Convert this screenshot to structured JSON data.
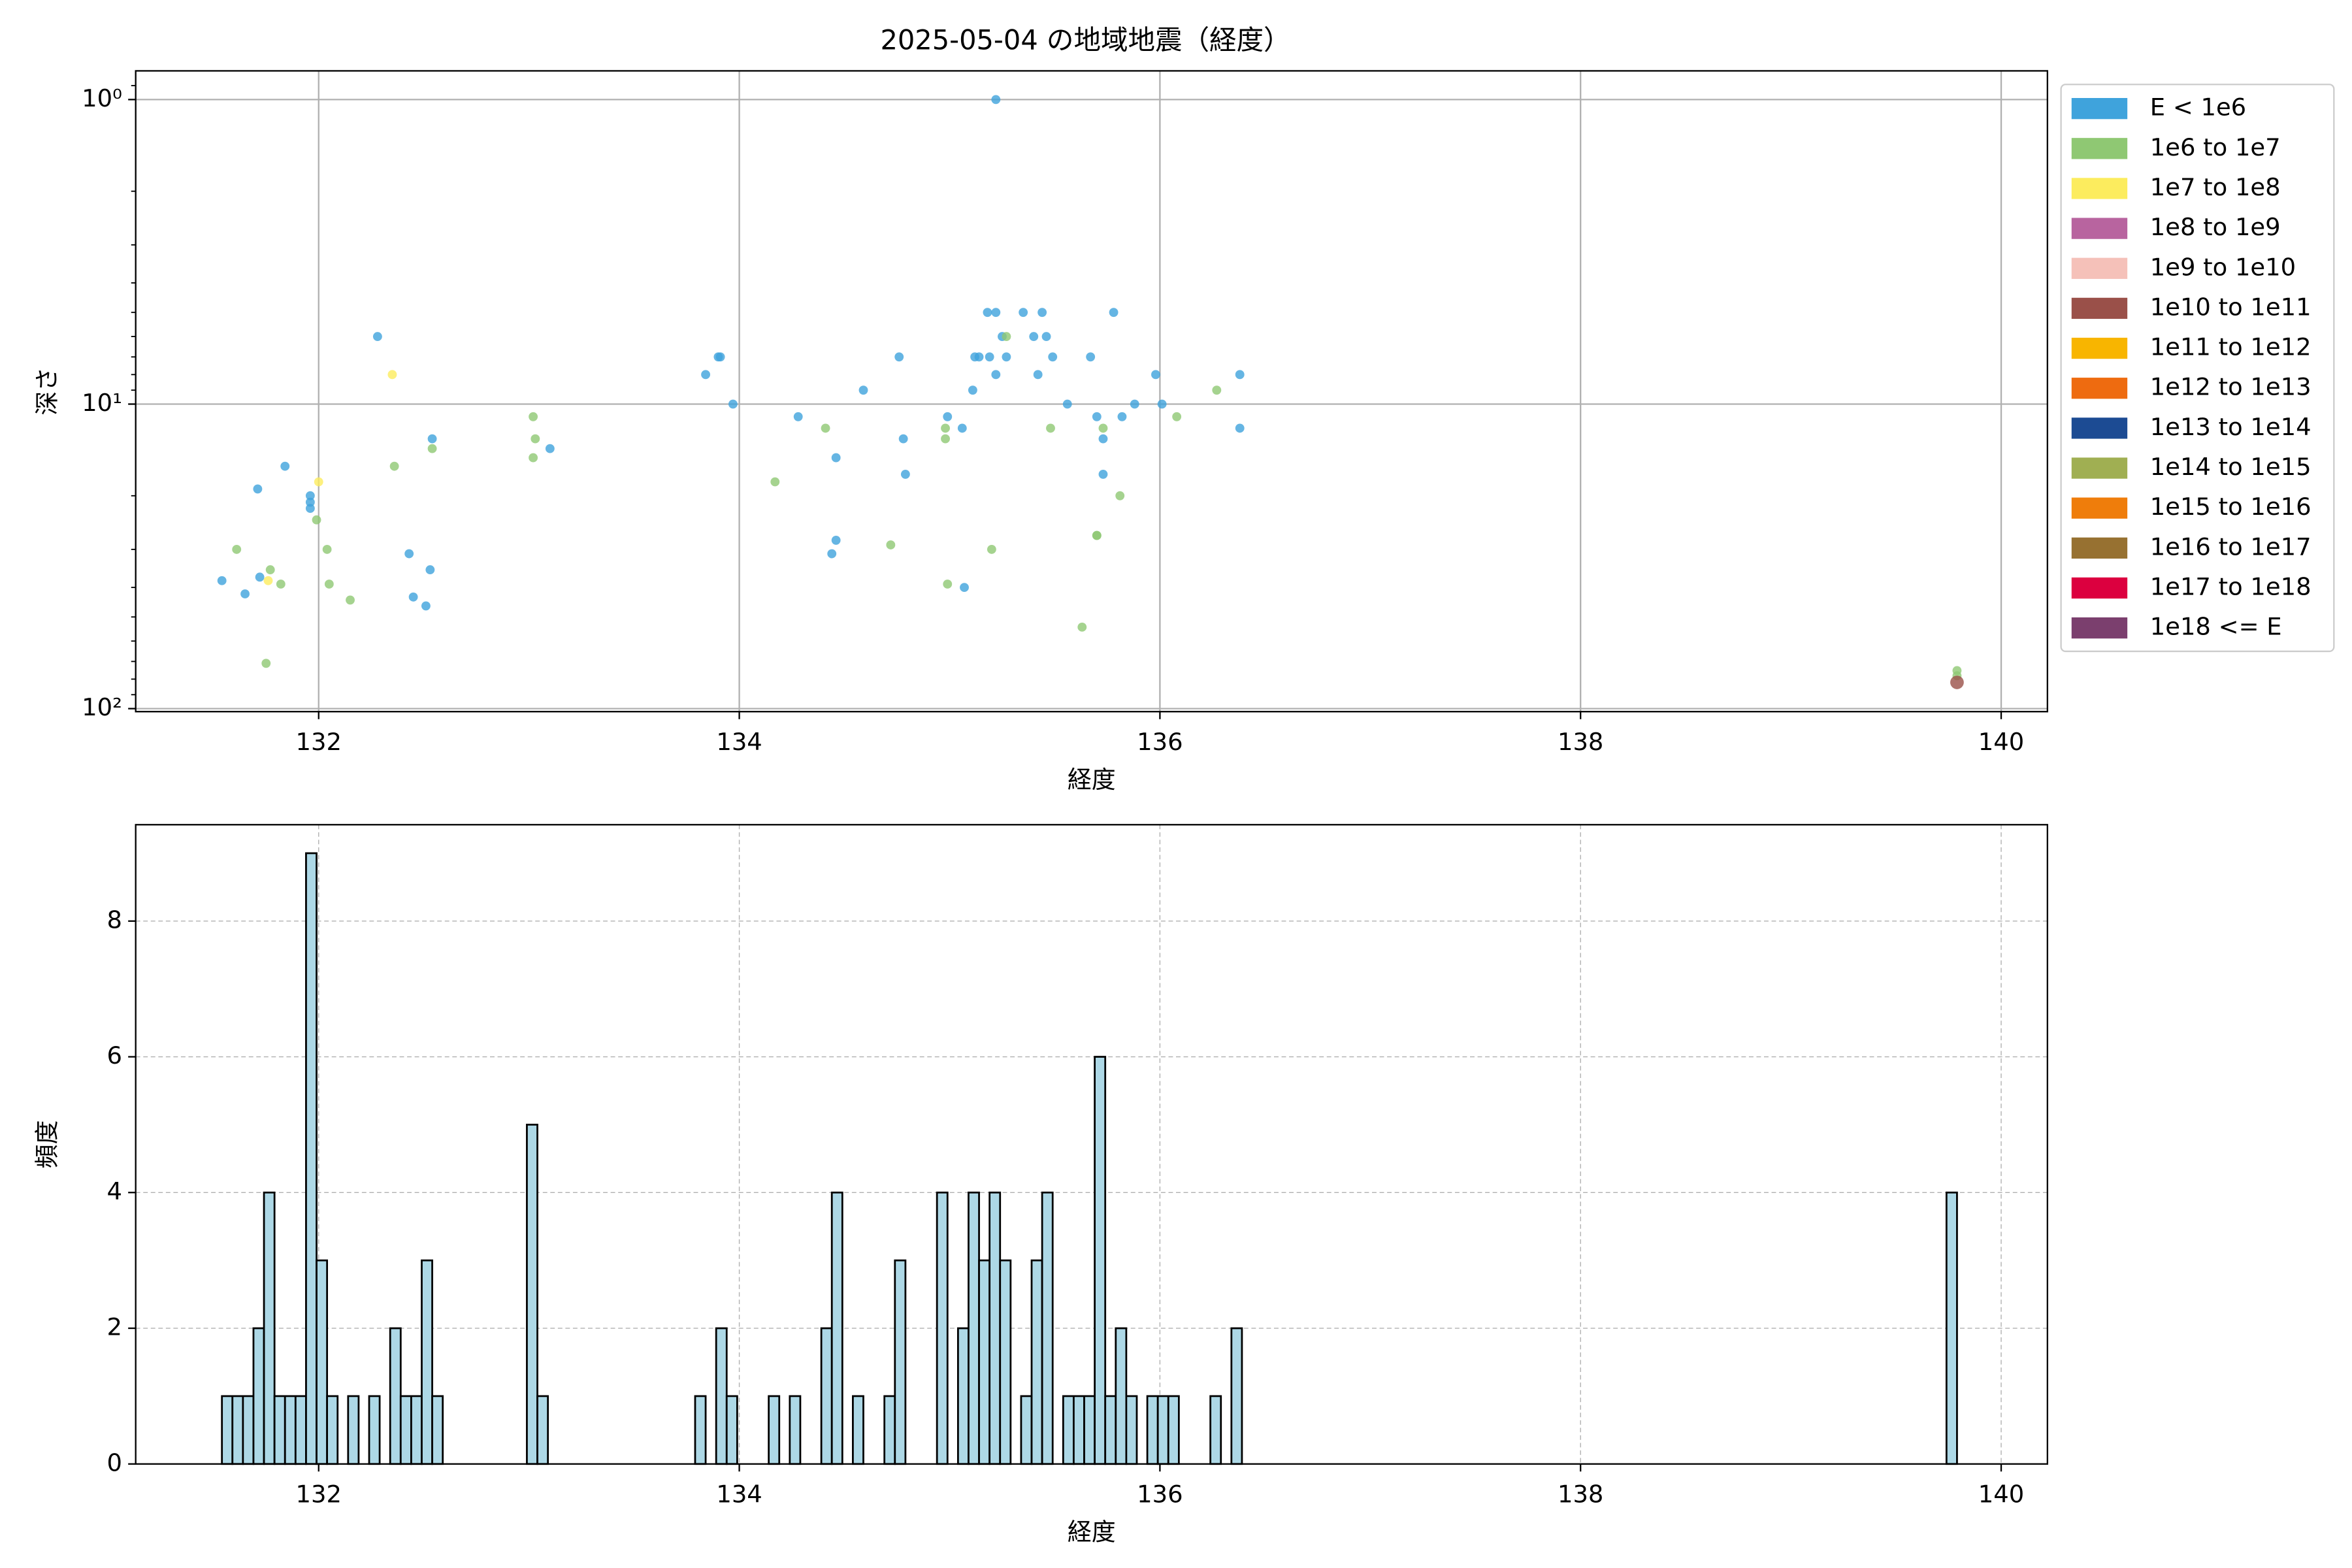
{
  "chart_data": [
    {
      "type": "scatter",
      "title": "2025-05-04 の地域地震（経度）",
      "xlabel": "経度",
      "ylabel": "深さ",
      "xlim": [
        131.13,
        140.22
      ],
      "xticks": [
        132,
        134,
        136,
        138,
        140
      ],
      "ylim": [
        102.3,
        0.805
      ],
      "yscale": "log",
      "yticks": [
        {
          "value": 1,
          "label": "10⁰"
        },
        {
          "value": 10,
          "label": "10¹"
        },
        {
          "value": 100,
          "label": "10²"
        }
      ],
      "grid": true,
      "grid_linestyle": "solid",
      "legend": "outside upper right",
      "series": [
        {
          "name": "E < 1e6",
          "color": "#3fa3dc",
          "x": [
            131.54,
            131.65,
            131.71,
            131.72,
            131.84,
            131.96,
            131.96,
            131.96,
            132.28,
            132.43,
            132.45,
            132.51,
            132.53,
            132.54,
            133.1,
            133.84,
            133.9,
            133.91,
            133.97,
            134.28,
            134.44,
            134.46,
            134.46,
            134.59,
            134.76,
            134.78,
            134.79,
            134.99,
            135.06,
            135.07,
            135.11,
            135.12,
            135.14,
            135.19,
            135.18,
            135.22,
            135.22,
            135.22,
            135.25,
            135.27,
            135.35,
            135.4,
            135.42,
            135.44,
            135.46,
            135.49,
            135.56,
            135.67,
            135.7,
            135.73,
            135.73,
            135.78,
            135.82,
            135.88,
            135.98,
            136.01,
            136.38,
            136.38
          ],
          "values": [
            38,
            42,
            19,
            37,
            16,
            20,
            21,
            22,
            6,
            31,
            43,
            46,
            35,
            13,
            14,
            8,
            7,
            7,
            10,
            11,
            31,
            15,
            28,
            9,
            7,
            13,
            17,
            11,
            12,
            40,
            9,
            7,
            7,
            7,
            5,
            5,
            8,
            1,
            6,
            7,
            5,
            6,
            8,
            5,
            6,
            7,
            10,
            7,
            11,
            13,
            17,
            5,
            11,
            10,
            8,
            10,
            8,
            12
          ]
        },
        {
          "name": "1e6 to 1e7",
          "color": "#8fc873",
          "x": [
            131.61,
            131.75,
            131.77,
            131.82,
            131.99,
            132.04,
            132.05,
            132.15,
            132.36,
            132.54,
            133.02,
            133.03,
            133.02,
            134.17,
            134.41,
            134.72,
            134.98,
            134.98,
            134.99,
            135.2,
            135.27,
            135.48,
            135.63,
            135.7,
            135.7,
            135.73,
            135.81,
            136.08,
            136.27,
            139.79,
            139.79
          ],
          "values": [
            30,
            71,
            35,
            39,
            24,
            30,
            39,
            44,
            16,
            14,
            11,
            13,
            15,
            18,
            12,
            29,
            13,
            12,
            39,
            30,
            6,
            12,
            54,
            27,
            27,
            12,
            20,
            11,
            9,
            75,
            78
          ]
        },
        {
          "name": "1e7 to 1e8",
          "color": "#fcec5e",
          "x": [
            131.76,
            132,
            132.35
          ],
          "values": [
            38,
            18,
            8
          ]
        },
        {
          "name": "1e8 to 1e9",
          "color": "#b8649f",
          "x": [],
          "values": []
        },
        {
          "name": "1e9 to 1e10",
          "color": "#f5c1b9",
          "x": [],
          "values": []
        },
        {
          "name": "1e10 to 1e11",
          "color": "#9a5049",
          "x": [
            139.79
          ],
          "values": [
            82
          ]
        },
        {
          "name": "1e11 to 1e12",
          "color": "#f8b500",
          "x": [],
          "values": []
        },
        {
          "name": "1e12 to 1e13",
          "color": "#ee6b10",
          "x": [],
          "values": []
        },
        {
          "name": "1e13 to 1e14",
          "color": "#1c4b93",
          "x": [],
          "values": []
        },
        {
          "name": "1e14 to 1e15",
          "color": "#a0af52",
          "x": [],
          "values": []
        },
        {
          "name": "1e15 to 1e16",
          "color": "#ef7d0b",
          "x": [],
          "values": []
        },
        {
          "name": "1e16 to 1e17",
          "color": "#977131",
          "x": [],
          "values": []
        },
        {
          "name": "1e17 to 1e18",
          "color": "#dc003f",
          "x": [],
          "values": []
        },
        {
          "name": "1e18 <= E",
          "color": "#7b3f6e",
          "x": [],
          "values": []
        }
      ]
    },
    {
      "type": "histogram",
      "xlabel": "経度",
      "ylabel": "頻度",
      "xlim": [
        131.13,
        140.22
      ],
      "xticks": [
        132,
        134,
        136,
        138,
        140
      ],
      "ylim": [
        0,
        9.42
      ],
      "yticks": [
        0,
        2,
        4,
        6,
        8
      ],
      "grid": true,
      "grid_linestyle": "dashed",
      "color": "#add8e6",
      "edgecolor": "#000000",
      "bins": [
        131.54,
        131.59,
        131.64,
        131.69,
        131.74,
        131.79,
        131.84,
        131.89,
        131.94,
        131.99,
        132.04,
        132.09,
        132.14,
        132.19,
        132.24,
        132.29,
        132.34,
        132.39,
        132.44,
        132.49,
        132.54,
        132.59,
        132.64,
        132.69,
        132.74,
        132.79,
        132.84,
        132.89,
        132.94,
        132.99,
        133.04,
        133.09,
        133.14,
        133.19,
        133.24,
        133.29,
        133.34,
        133.39,
        133.44,
        133.49,
        133.54,
        133.59,
        133.64,
        133.69,
        133.74,
        133.79,
        133.84,
        133.89,
        133.94,
        133.99,
        134.04,
        134.09,
        134.14,
        134.19,
        134.24,
        134.29,
        134.34,
        134.39,
        134.44,
        134.49,
        134.54,
        134.59,
        134.64,
        134.69,
        134.74,
        134.79,
        134.84,
        134.89,
        134.94,
        134.99,
        135.04,
        135.09,
        135.14,
        135.19,
        135.24,
        135.29,
        135.34,
        135.39,
        135.44,
        135.49,
        135.54,
        135.59,
        135.64,
        135.69,
        135.74,
        135.79,
        135.84,
        135.89,
        135.94,
        135.99,
        136.04,
        136.09,
        136.14,
        136.19,
        136.24,
        136.29,
        136.34,
        136.39,
        136.44,
        136.49,
        136.54,
        136.59,
        136.64,
        136.69,
        136.74,
        136.79,
        136.84,
        136.89,
        136.94,
        136.99,
        137.04,
        137.09,
        137.14,
        137.19,
        137.24,
        137.29,
        137.34,
        137.39,
        137.44,
        137.49,
        137.54,
        137.59,
        137.64,
        137.69,
        137.74,
        137.79,
        137.84,
        137.89,
        137.94,
        137.99,
        138.04,
        138.09,
        138.14,
        138.19,
        138.24,
        138.29,
        138.34,
        138.39,
        138.44,
        138.49,
        138.54,
        138.59,
        138.64,
        138.69,
        138.74,
        138.79,
        138.84,
        138.89,
        138.94,
        138.99,
        139.04,
        139.09,
        139.14,
        139.19,
        139.24,
        139.29,
        139.34,
        139.39,
        139.44,
        139.49,
        139.54,
        139.59,
        139.64,
        139.69,
        139.74,
        139.79,
        139.84
      ],
      "values": [
        1,
        1,
        1,
        2,
        4,
        1,
        1,
        1,
        9,
        3,
        1,
        0,
        1,
        0,
        1,
        0,
        2,
        1,
        1,
        3,
        1,
        0,
        0,
        0,
        0,
        0,
        0,
        0,
        0,
        5,
        1,
        0,
        0,
        0,
        0,
        0,
        0,
        0,
        0,
        0,
        0,
        0,
        0,
        0,
        0,
        1,
        0,
        2,
        1,
        0,
        0,
        0,
        1,
        0,
        1,
        0,
        0,
        2,
        4,
        0,
        1,
        0,
        0,
        1,
        3,
        0,
        0,
        0,
        4,
        0,
        2,
        4,
        3,
        4,
        3,
        0,
        1,
        3,
        4,
        0,
        1,
        1,
        1,
        6,
        1,
        2,
        1,
        0,
        1,
        1,
        1,
        0,
        0,
        0,
        1,
        0,
        2,
        0,
        0,
        0,
        0,
        0,
        0,
        0,
        0,
        0,
        0,
        0,
        0,
        0,
        0,
        0,
        0,
        0,
        0,
        0,
        0,
        0,
        0,
        0,
        0,
        0,
        0,
        0,
        0,
        0,
        0,
        0,
        0,
        0,
        0,
        0,
        0,
        0,
        0,
        0,
        0,
        0,
        0,
        0,
        0,
        0,
        0,
        0,
        0,
        0,
        0,
        0,
        0,
        0,
        0,
        0,
        0,
        0,
        0,
        0,
        0,
        0,
        0,
        0,
        0,
        0,
        0,
        0,
        4,
        0
      ]
    }
  ]
}
